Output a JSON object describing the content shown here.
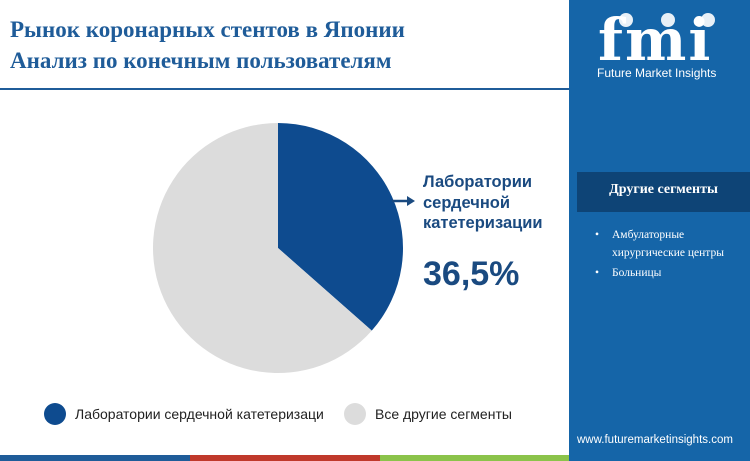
{
  "header": {
    "title_line1": "Рынок коронарных стентов в Японии",
    "title_line2": "Анализ по конечным пользователям"
  },
  "brand": {
    "logo_text": "fmi",
    "name": "Future Market Insights",
    "website": "www.futuremarketinsights.com"
  },
  "sidebar": {
    "other_segments_title": "Другие сегменты",
    "items": [
      "Амбулаторные хирургические центры",
      "Больницы"
    ]
  },
  "callout": {
    "label": "Лаборатории сердечной катетеризации",
    "value": "36,5%"
  },
  "chart_data": {
    "type": "pie",
    "slices": [
      {
        "label": "Лаборатории сердечной катетеризации",
        "value": 36.5,
        "color": "#0e4b8f"
      },
      {
        "label": "Все другие сегменты",
        "value": 63.5,
        "color": "#dcdcdc"
      }
    ],
    "legend": [
      "Лаборатории сердечной катетеризаци",
      "Все другие сегменты"
    ],
    "legend_position": "bottom"
  },
  "colors": {
    "title": "#1f5c99",
    "sidebar": "#1565a8",
    "sidebar_box": "#0e4476",
    "accent_bars": [
      "#1f5c99",
      "#c0392b",
      "#8bc34a"
    ]
  }
}
